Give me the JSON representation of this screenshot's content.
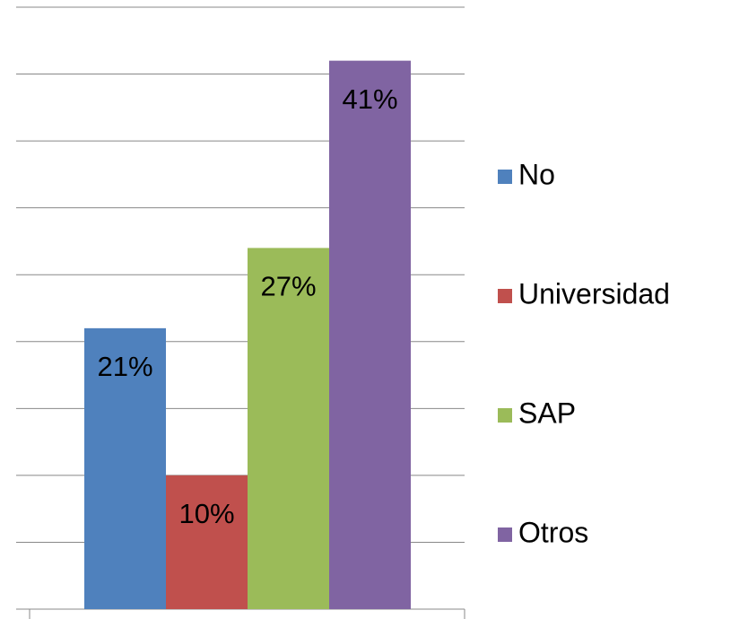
{
  "chart_data": {
    "type": "bar",
    "categories": [
      null
    ],
    "series": [
      {
        "name": "No",
        "color": "#4f81bd",
        "values": [
          21
        ],
        "value_labels": [
          "21%"
        ]
      },
      {
        "name": "Universidad",
        "color": "#c0504d",
        "values": [
          10
        ],
        "value_labels": [
          "10%"
        ]
      },
      {
        "name": "SAP",
        "color": "#9bbb59",
        "values": [
          27
        ],
        "value_labels": [
          "27%"
        ]
      },
      {
        "name": "Otros",
        "color": "#8064a2",
        "values": [
          41
        ],
        "value_labels": [
          "41%"
        ]
      }
    ],
    "ylim": [
      0,
      45
    ],
    "yticks": [
      0,
      5,
      10,
      15,
      20,
      25,
      30,
      35,
      40,
      45
    ],
    "grid": true,
    "legend": "right"
  }
}
